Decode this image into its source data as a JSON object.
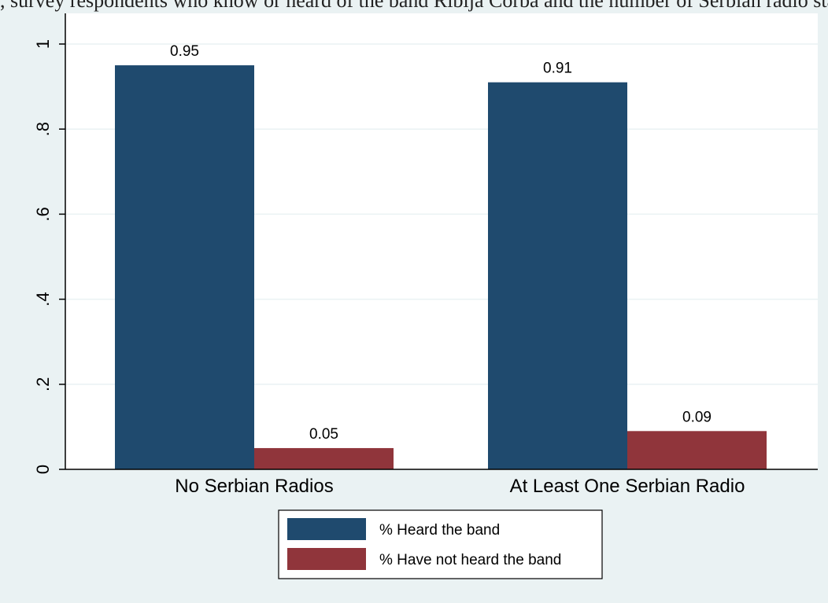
{
  "fragment_text": ", survey respondents who know or heard of the band Riblja Čorba and the number of Serbian radio stations in the village",
  "chart_data": {
    "type": "bar",
    "categories": [
      "No Serbian Radios",
      "At Least One Serbian Radio"
    ],
    "series": [
      {
        "name": "% Heard the band",
        "values": [
          0.95,
          0.91
        ],
        "labels": [
          "0.95",
          "0.91"
        ],
        "color": "#1f4a6e"
      },
      {
        "name": "% Have not heard the band",
        "values": [
          0.05,
          0.09
        ],
        "labels": [
          "0.05",
          "0.09"
        ],
        "color": "#90353b"
      }
    ],
    "yticks": [
      0,
      0.2,
      0.4,
      0.6,
      0.8,
      1
    ],
    "ytick_labels": [
      "0",
      ".2",
      ".4",
      ".6",
      ".8",
      "1"
    ],
    "ylim": [
      0,
      1
    ],
    "grid": true,
    "legend_position": "bottom"
  }
}
